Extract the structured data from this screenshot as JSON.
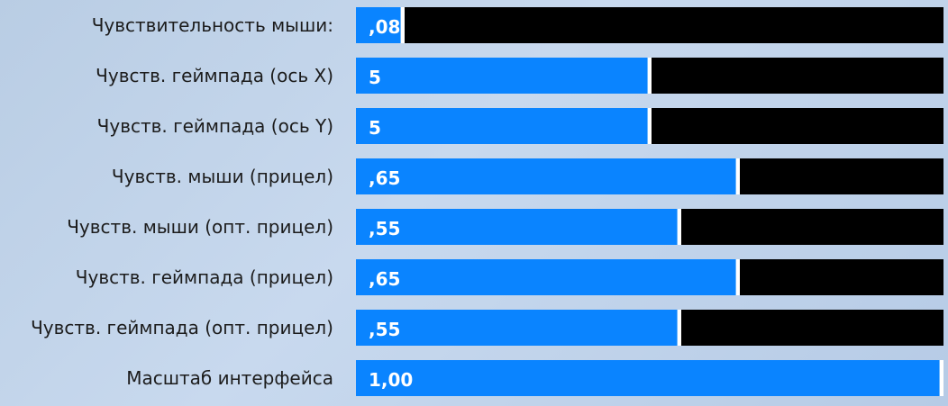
{
  "settings": [
    {
      "label": "Чувствительность мыши:",
      "value": ",08",
      "level": 0.08
    },
    {
      "label": "Чувств. геймпада (ось X)",
      "value": "5",
      "level": 0.5
    },
    {
      "label": "Чувств. геймпада (ось Y)",
      "value": "5",
      "level": 0.5
    },
    {
      "label": "Чувств. мыши (прицел)",
      "value": ",65",
      "level": 0.65
    },
    {
      "label": "Чувств. мыши (опт. прицел)",
      "value": ",55",
      "level": 0.55
    },
    {
      "label": "Чувств. геймпада (прицел)",
      "value": ",65",
      "level": 0.65
    },
    {
      "label": "Чувств. геймпада (опт. прицел)",
      "value": ",55",
      "level": 0.55
    },
    {
      "label": "Масштаб интерфейса",
      "value": "1,00",
      "level": 1.0
    }
  ],
  "colors": {
    "fill": "#0a84ff",
    "track": "#000000",
    "handle": "#ffffff",
    "label": "#1c1c1c"
  }
}
